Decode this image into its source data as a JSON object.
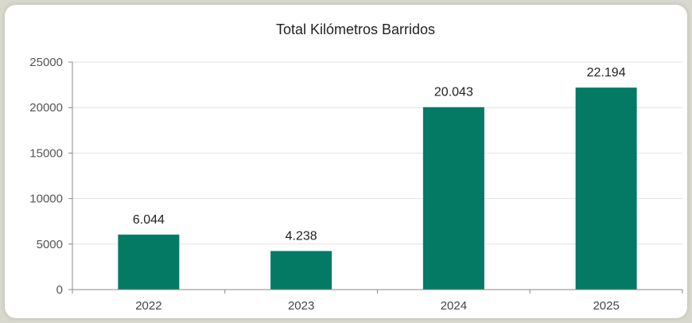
{
  "chart_data": {
    "type": "bar",
    "title": "Total Kilómetros Barridos",
    "xlabel": "",
    "ylabel": "",
    "categories": [
      "2022",
      "2023",
      "2024",
      "2025"
    ],
    "values": [
      6044,
      4238,
      20043,
      22194
    ],
    "data_labels": [
      "6.044",
      "4.238",
      "20.043",
      "22.194"
    ],
    "ylim": [
      0,
      25000
    ],
    "yticks": [
      "0",
      "5000",
      "10000",
      "15000",
      "20000",
      "25000"
    ],
    "grid": true,
    "legend": "none",
    "bar_color": "#047a64"
  }
}
